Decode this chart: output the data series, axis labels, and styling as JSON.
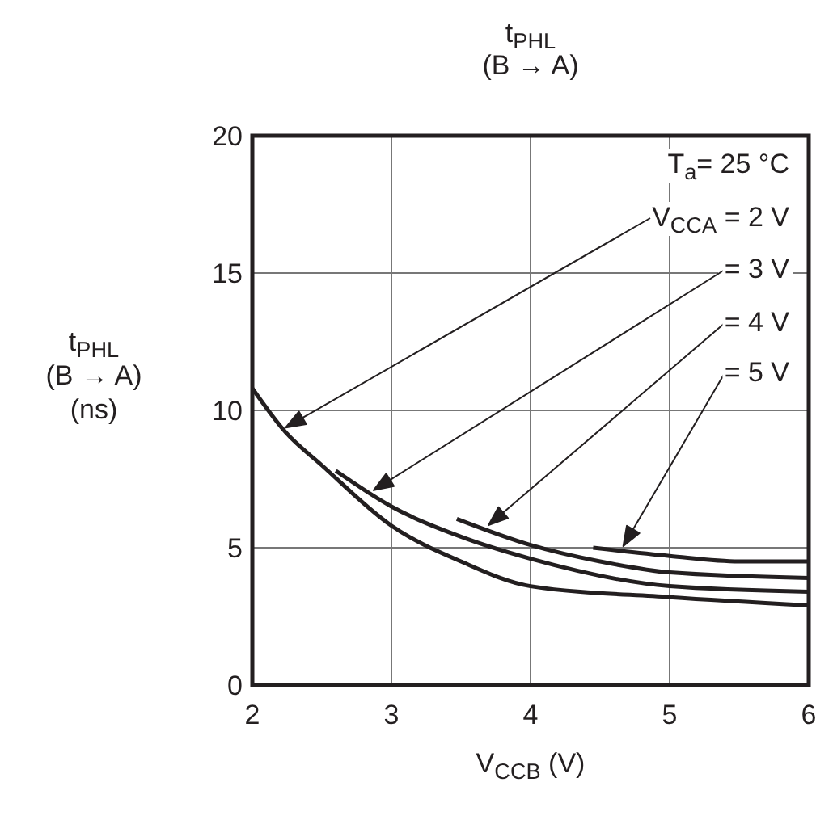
{
  "chart_data": {
    "type": "line",
    "title": "t$_{PHL}$\n(B → A)",
    "xlabel": "V$_{CCB}$ (V)",
    "ylabel": "t$_{PHL}$\n(B → A)\n(ns)",
    "xlim": [
      2,
      6
    ],
    "xticks": [
      2,
      3,
      4,
      5,
      6
    ],
    "ylim": [
      0,
      20
    ],
    "yticks": [
      0,
      5,
      10,
      15,
      20
    ],
    "grid": true,
    "marker": "none",
    "line_style": "solid",
    "series": [
      {
        "color": "#231f20",
        "x": [
          2,
          2.24,
          2.5,
          3,
          3.5,
          4,
          5,
          6
        ],
        "values": [
          10.8,
          9.2,
          8.0,
          5.8,
          4.5,
          3.6,
          3.2,
          2.9
        ]
      },
      {
        "color": "#231f20",
        "x": [
          2.6,
          3,
          3.5,
          4,
          5,
          6
        ],
        "values": [
          7.8,
          6.5,
          5.4,
          4.6,
          3.6,
          3.4
        ]
      },
      {
        "color": "#231f20",
        "x": [
          3.47,
          4,
          4.5,
          5,
          6
        ],
        "values": [
          6.05,
          5.1,
          4.5,
          4.1,
          3.9
        ]
      },
      {
        "color": "#231f20",
        "x": [
          4.45,
          5,
          5.5,
          6
        ],
        "values": [
          5.0,
          4.7,
          4.5,
          4.5
        ]
      }
    ],
    "annotations": [
      "T$_{a}$= 25 °C",
      "V$_{CCA}$ = 2 V",
      "= 3 V",
      "= 4 V",
      "= 5 V"
    ]
  }
}
